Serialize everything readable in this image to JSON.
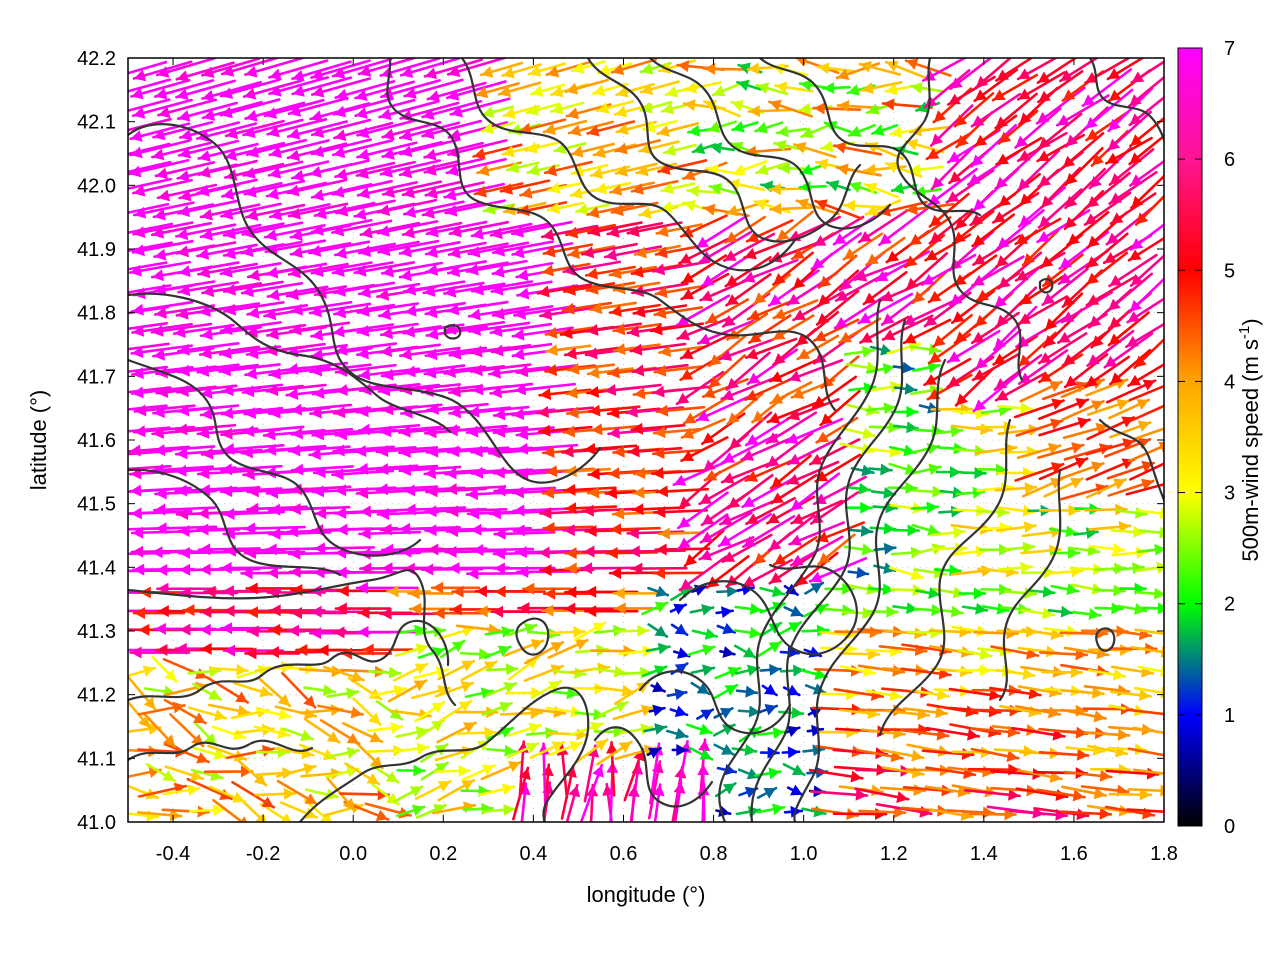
{
  "chart_data": {
    "type": "vector-field",
    "xlabel": "longitude (°)",
    "ylabel": "latitude (°)",
    "xlim": [
      -0.5,
      1.8
    ],
    "ylim": [
      41.0,
      42.2
    ],
    "xticks": [
      "-0.4",
      "-0.2",
      "0.0",
      "0.2",
      "0.4",
      "0.6",
      "0.8",
      "1.0",
      "1.2",
      "1.4",
      "1.6",
      "1.8"
    ],
    "yticks": [
      "41.0",
      "41.1",
      "41.2",
      "41.3",
      "41.4",
      "41.5",
      "41.6",
      "41.7",
      "41.8",
      "41.9",
      "42.0",
      "42.1",
      "42.2"
    ],
    "grid": true,
    "colorbar": {
      "label": "500m-wind speed (m s-1)",
      "label_main": "500m-wind speed (m s",
      "label_sup": "-1",
      "label_end": ")",
      "range": [
        0,
        7
      ],
      "ticks": [
        "0",
        "1",
        "2",
        "3",
        "4",
        "5",
        "6",
        "7"
      ],
      "colors": [
        "#000000",
        "#0000ff",
        "#00ff00",
        "#ffff00",
        "#ffa500",
        "#ff0000",
        "#ff00ff"
      ]
    },
    "wind_regions": [
      {
        "region": "north-west",
        "direction": "westward",
        "speed": 7
      },
      {
        "region": "central-west",
        "direction": "westward",
        "speed": 7
      },
      {
        "region": "central",
        "direction": "westward",
        "speed": 5.5
      },
      {
        "region": "south-west",
        "direction": "eastward",
        "speed": 4
      },
      {
        "region": "south-east",
        "direction": "eastward",
        "speed": 4.5
      },
      {
        "region": "east-center",
        "direction": "eastward",
        "speed": 2.5
      },
      {
        "region": "north-center",
        "direction": "westward",
        "speed": 3
      }
    ]
  }
}
